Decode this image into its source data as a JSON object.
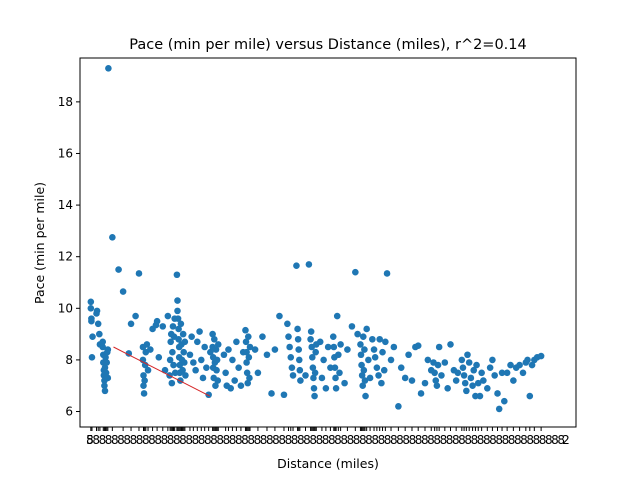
{
  "chart_data": {
    "type": "scatter",
    "title": "Pace (min per mile) versus Distance (miles), r^2=0.14",
    "xlabel": "Distance (miles)",
    "ylabel": "Pace (min per mile)",
    "ylim": [
      5.4,
      19.7
    ],
    "yticks": [
      6,
      8,
      10,
      12,
      14,
      16,
      18
    ],
    "xlim": [
      0,
      100
    ],
    "x_tick_labels_note": "Dense overlapping categorical tick labels along x axis (illegible); visible fragments at ends",
    "x_tick_label_first": "5",
    "x_tick_label_last": "2",
    "grid": false,
    "legend": "none",
    "point_color": "#1f77b4",
    "fit_color": "#d62728",
    "fit_line": {
      "x": [
        4.5,
        21.5
      ],
      "y": [
        8.5,
        6.6
      ]
    },
    "series": [
      {
        "points": [
          [
            0.5,
            10.25
          ],
          [
            0.5,
            10.0
          ],
          [
            0.6,
            9.5
          ],
          [
            0.6,
            9.6
          ],
          [
            0.7,
            8.1
          ],
          [
            0.8,
            8.9
          ],
          [
            1.5,
            9.8
          ],
          [
            1.6,
            9.9
          ],
          [
            1.8,
            9.4
          ],
          [
            2.0,
            9.0
          ],
          [
            2.1,
            8.6
          ],
          [
            2.6,
            8.7
          ],
          [
            2.6,
            8.5
          ],
          [
            2.7,
            8.2
          ],
          [
            2.7,
            7.9
          ],
          [
            2.8,
            7.6
          ],
          [
            2.8,
            7.4
          ],
          [
            2.9,
            7.2
          ],
          [
            2.9,
            7.0
          ],
          [
            3.0,
            6.8
          ],
          [
            3.0,
            7.7
          ],
          [
            3.1,
            8.1
          ],
          [
            3.2,
            7.5
          ],
          [
            3.3,
            7.9
          ],
          [
            3.4,
            8.3
          ],
          [
            3.5,
            7.3
          ],
          [
            3.5,
            8.4
          ],
          [
            3.6,
            19.3
          ],
          [
            4.3,
            12.75
          ],
          [
            5.4,
            11.5
          ],
          [
            6.2,
            10.65
          ],
          [
            7.2,
            8.25
          ],
          [
            7.6,
            9.4
          ],
          [
            8.4,
            9.7
          ],
          [
            9.0,
            11.35
          ],
          [
            9.7,
            8.5
          ],
          [
            9.7,
            8.0
          ],
          [
            9.8,
            7.4
          ],
          [
            9.8,
            7.0
          ],
          [
            9.9,
            6.7
          ],
          [
            10.0,
            7.2
          ],
          [
            10.1,
            7.8
          ],
          [
            10.2,
            8.3
          ],
          [
            10.4,
            8.6
          ],
          [
            10.6,
            7.6
          ],
          [
            11.0,
            8.4
          ],
          [
            11.4,
            9.2
          ],
          [
            12.0,
            9.35
          ],
          [
            12.2,
            9.5
          ],
          [
            12.5,
            8.1
          ],
          [
            13.2,
            9.3
          ],
          [
            13.6,
            7.6
          ],
          [
            14.1,
            9.7
          ],
          [
            14.4,
            7.4
          ],
          [
            14.5,
            8.0
          ],
          [
            14.6,
            8.7
          ],
          [
            14.7,
            9.0
          ],
          [
            14.8,
            7.1
          ],
          [
            14.9,
            8.3
          ],
          [
            15.0,
            9.3
          ],
          [
            15.1,
            7.8
          ],
          [
            15.2,
            8.9
          ],
          [
            15.3,
            9.6
          ],
          [
            15.4,
            7.5
          ],
          [
            15.7,
            11.3
          ],
          [
            15.8,
            10.3
          ],
          [
            15.8,
            9.9
          ],
          [
            15.9,
            9.6
          ],
          [
            16.0,
            9.2
          ],
          [
            16.0,
            8.8
          ],
          [
            16.1,
            8.5
          ],
          [
            16.1,
            8.1
          ],
          [
            16.2,
            7.8
          ],
          [
            16.2,
            7.5
          ],
          [
            16.3,
            7.2
          ],
          [
            16.4,
            9.4
          ],
          [
            16.5,
            8.6
          ],
          [
            16.6,
            8.0
          ],
          [
            16.7,
            7.6
          ],
          [
            16.8,
            9.0
          ],
          [
            16.9,
            8.3
          ],
          [
            17.0,
            7.9
          ],
          [
            17.1,
            8.7
          ],
          [
            17.2,
            7.4
          ],
          [
            18.0,
            8.2
          ],
          [
            18.3,
            8.9
          ],
          [
            18.6,
            7.9
          ],
          [
            19.0,
            7.6
          ],
          [
            19.3,
            8.7
          ],
          [
            19.7,
            9.1
          ],
          [
            20.0,
            8.0
          ],
          [
            20.3,
            7.3
          ],
          [
            20.6,
            8.5
          ],
          [
            20.9,
            7.7
          ],
          [
            21.3,
            6.65
          ],
          [
            21.6,
            8.3
          ],
          [
            22.0,
            9.0
          ],
          [
            22.0,
            8.5
          ],
          [
            22.1,
            8.1
          ],
          [
            22.1,
            7.7
          ],
          [
            22.2,
            7.3
          ],
          [
            22.3,
            8.8
          ],
          [
            22.4,
            7.9
          ],
          [
            22.5,
            7.0
          ],
          [
            22.6,
            8.4
          ],
          [
            22.7,
            7.6
          ],
          [
            22.8,
            8.0
          ],
          [
            22.9,
            7.2
          ],
          [
            23.0,
            8.6
          ],
          [
            24.0,
            8.2
          ],
          [
            24.3,
            7.5
          ],
          [
            24.5,
            7.0
          ],
          [
            24.8,
            8.4
          ],
          [
            25.2,
            6.9
          ],
          [
            25.5,
            8.0
          ],
          [
            25.9,
            7.2
          ],
          [
            26.2,
            8.7
          ],
          [
            26.6,
            7.7
          ],
          [
            27.0,
            7.0
          ],
          [
            27.4,
            8.3
          ],
          [
            27.8,
            9.15
          ],
          [
            27.9,
            8.7
          ],
          [
            28.0,
            8.3
          ],
          [
            28.0,
            7.9
          ],
          [
            28.1,
            7.5
          ],
          [
            28.2,
            7.1
          ],
          [
            28.3,
            8.9
          ],
          [
            28.4,
            8.1
          ],
          [
            28.5,
            7.3
          ],
          [
            28.6,
            8.5
          ],
          [
            29.5,
            8.4
          ],
          [
            30.0,
            7.5
          ],
          [
            30.8,
            8.9
          ],
          [
            31.6,
            8.2
          ],
          [
            32.4,
            6.7
          ],
          [
            33.0,
            8.4
          ],
          [
            33.8,
            9.7
          ],
          [
            34.6,
            6.65
          ],
          [
            35.2,
            9.4
          ],
          [
            35.4,
            8.9
          ],
          [
            35.6,
            8.5
          ],
          [
            35.8,
            8.1
          ],
          [
            36.0,
            7.7
          ],
          [
            36.2,
            7.4
          ],
          [
            36.8,
            11.65
          ],
          [
            37.0,
            9.2
          ],
          [
            37.1,
            8.8
          ],
          [
            37.2,
            8.4
          ],
          [
            37.3,
            8.0
          ],
          [
            37.4,
            7.6
          ],
          [
            37.5,
            7.2
          ],
          [
            38.4,
            7.4
          ],
          [
            39.0,
            11.7
          ],
          [
            39.3,
            8.8
          ],
          [
            39.4,
            9.1
          ],
          [
            39.5,
            8.5
          ],
          [
            39.6,
            8.1
          ],
          [
            39.7,
            7.7
          ],
          [
            39.8,
            7.3
          ],
          [
            39.9,
            6.9
          ],
          [
            40.0,
            6.6
          ],
          [
            40.1,
            7.5
          ],
          [
            40.2,
            8.3
          ],
          [
            40.3,
            8.6
          ],
          [
            41.0,
            8.7
          ],
          [
            41.3,
            7.3
          ],
          [
            41.6,
            8.0
          ],
          [
            42.0,
            6.9
          ],
          [
            42.4,
            8.5
          ],
          [
            42.8,
            7.7
          ],
          [
            43.3,
            8.9
          ],
          [
            43.4,
            8.5
          ],
          [
            43.5,
            8.1
          ],
          [
            43.6,
            7.7
          ],
          [
            43.7,
            7.3
          ],
          [
            43.8,
            6.9
          ],
          [
            44.0,
            9.7
          ],
          [
            44.2,
            8.2
          ],
          [
            44.4,
            7.5
          ],
          [
            44.6,
            8.6
          ],
          [
            45.3,
            7.1
          ],
          [
            45.8,
            8.4
          ],
          [
            46.6,
            9.3
          ],
          [
            47.2,
            11.4
          ],
          [
            47.6,
            9.0
          ],
          [
            48.1,
            8.6
          ],
          [
            48.2,
            8.2
          ],
          [
            48.3,
            7.8
          ],
          [
            48.4,
            7.4
          ],
          [
            48.5,
            7.0
          ],
          [
            48.6,
            8.9
          ],
          [
            48.7,
            7.6
          ],
          [
            48.8,
            8.4
          ],
          [
            48.9,
            7.2
          ],
          [
            49.0,
            6.6
          ],
          [
            49.2,
            9.2
          ],
          [
            49.5,
            8.0
          ],
          [
            49.8,
            7.3
          ],
          [
            50.2,
            8.8
          ],
          [
            50.5,
            8.4
          ],
          [
            50.7,
            8.1
          ],
          [
            51.0,
            7.7
          ],
          [
            51.3,
            7.4
          ],
          [
            51.5,
            8.8
          ],
          [
            51.8,
            7.1
          ],
          [
            52.0,
            8.3
          ],
          [
            52.3,
            7.6
          ],
          [
            52.5,
            8.7
          ],
          [
            52.8,
            11.35
          ],
          [
            53.5,
            8.0
          ],
          [
            54.0,
            8.5
          ],
          [
            54.8,
            6.2
          ],
          [
            55.3,
            7.7
          ],
          [
            56.0,
            7.3
          ],
          [
            56.6,
            8.2
          ],
          [
            57.2,
            7.2
          ],
          [
            57.8,
            8.5
          ],
          [
            58.3,
            8.55
          ],
          [
            58.8,
            6.7
          ],
          [
            59.5,
            7.1
          ],
          [
            60.0,
            8.0
          ],
          [
            60.6,
            7.6
          ],
          [
            61.0,
            7.9
          ],
          [
            61.2,
            7.5
          ],
          [
            61.4,
            7.2
          ],
          [
            61.6,
            7.0
          ],
          [
            61.8,
            7.8
          ],
          [
            62.0,
            8.5
          ],
          [
            62.4,
            7.4
          ],
          [
            63.0,
            7.9
          ],
          [
            63.5,
            6.9
          ],
          [
            64.0,
            8.6
          ],
          [
            64.6,
            7.6
          ],
          [
            65.0,
            7.2
          ],
          [
            65.3,
            7.5
          ],
          [
            66.0,
            8.0
          ],
          [
            66.2,
            7.7
          ],
          [
            66.4,
            7.4
          ],
          [
            66.6,
            7.1
          ],
          [
            66.8,
            6.8
          ],
          [
            67.0,
            8.2
          ],
          [
            67.3,
            7.9
          ],
          [
            67.6,
            7.3
          ],
          [
            67.9,
            7.0
          ],
          [
            68.1,
            7.6
          ],
          [
            68.4,
            6.6
          ],
          [
            68.6,
            7.8
          ],
          [
            68.9,
            7.1
          ],
          [
            69.2,
            6.6
          ],
          [
            69.5,
            7.5
          ],
          [
            69.8,
            7.2
          ],
          [
            70.5,
            6.9
          ],
          [
            71.0,
            7.7
          ],
          [
            71.4,
            8.0
          ],
          [
            71.8,
            7.4
          ],
          [
            72.3,
            6.7
          ],
          [
            72.6,
            6.1
          ],
          [
            73.1,
            7.5
          ],
          [
            73.5,
            6.4
          ],
          [
            74.0,
            7.5
          ],
          [
            74.6,
            7.8
          ],
          [
            75.1,
            7.2
          ],
          [
            75.6,
            7.7
          ],
          [
            76.2,
            7.8
          ],
          [
            76.8,
            7.5
          ],
          [
            77.3,
            7.9
          ],
          [
            77.6,
            8.0
          ],
          [
            78.0,
            6.6
          ],
          [
            78.4,
            7.8
          ],
          [
            78.8,
            8.0
          ],
          [
            79.3,
            8.1
          ],
          [
            80.0,
            8.15
          ]
        ]
      }
    ]
  }
}
